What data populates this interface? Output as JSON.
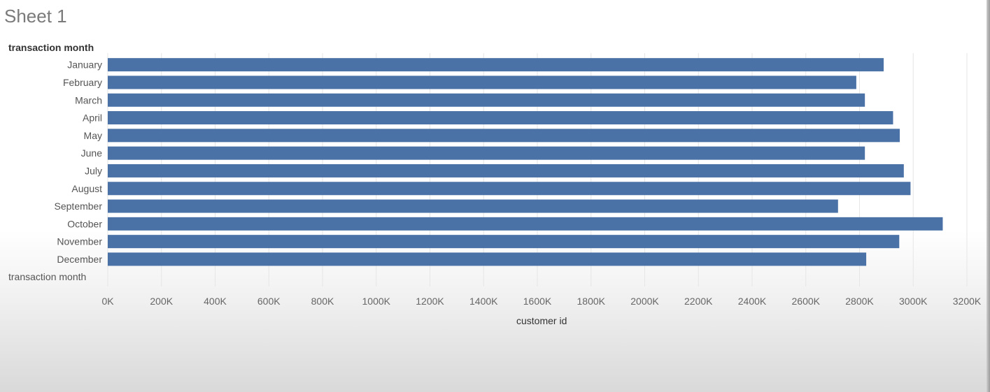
{
  "sheet": {
    "title": "Sheet 1"
  },
  "chart_data": {
    "type": "bar",
    "orientation": "horizontal",
    "row_header": "transaction month",
    "row_footer": "transaction month",
    "categories": [
      "January",
      "February",
      "March",
      "April",
      "May",
      "June",
      "July",
      "August",
      "September",
      "October",
      "November",
      "December"
    ],
    "values": [
      2890,
      2788,
      2820,
      2925,
      2950,
      2820,
      2965,
      2990,
      2720,
      3110,
      2948,
      2825
    ],
    "value_unit": "K",
    "xlabel": "customer id",
    "xlim": [
      0,
      3200
    ],
    "xticks": [
      "0K",
      "200K",
      "400K",
      "600K",
      "800K",
      "1000K",
      "1200K",
      "1400K",
      "1600K",
      "1800K",
      "2000K",
      "2200K",
      "2400K",
      "2600K",
      "2800K",
      "3000K",
      "3200K"
    ],
    "grid": true,
    "bar_color": "#4a72a6"
  }
}
